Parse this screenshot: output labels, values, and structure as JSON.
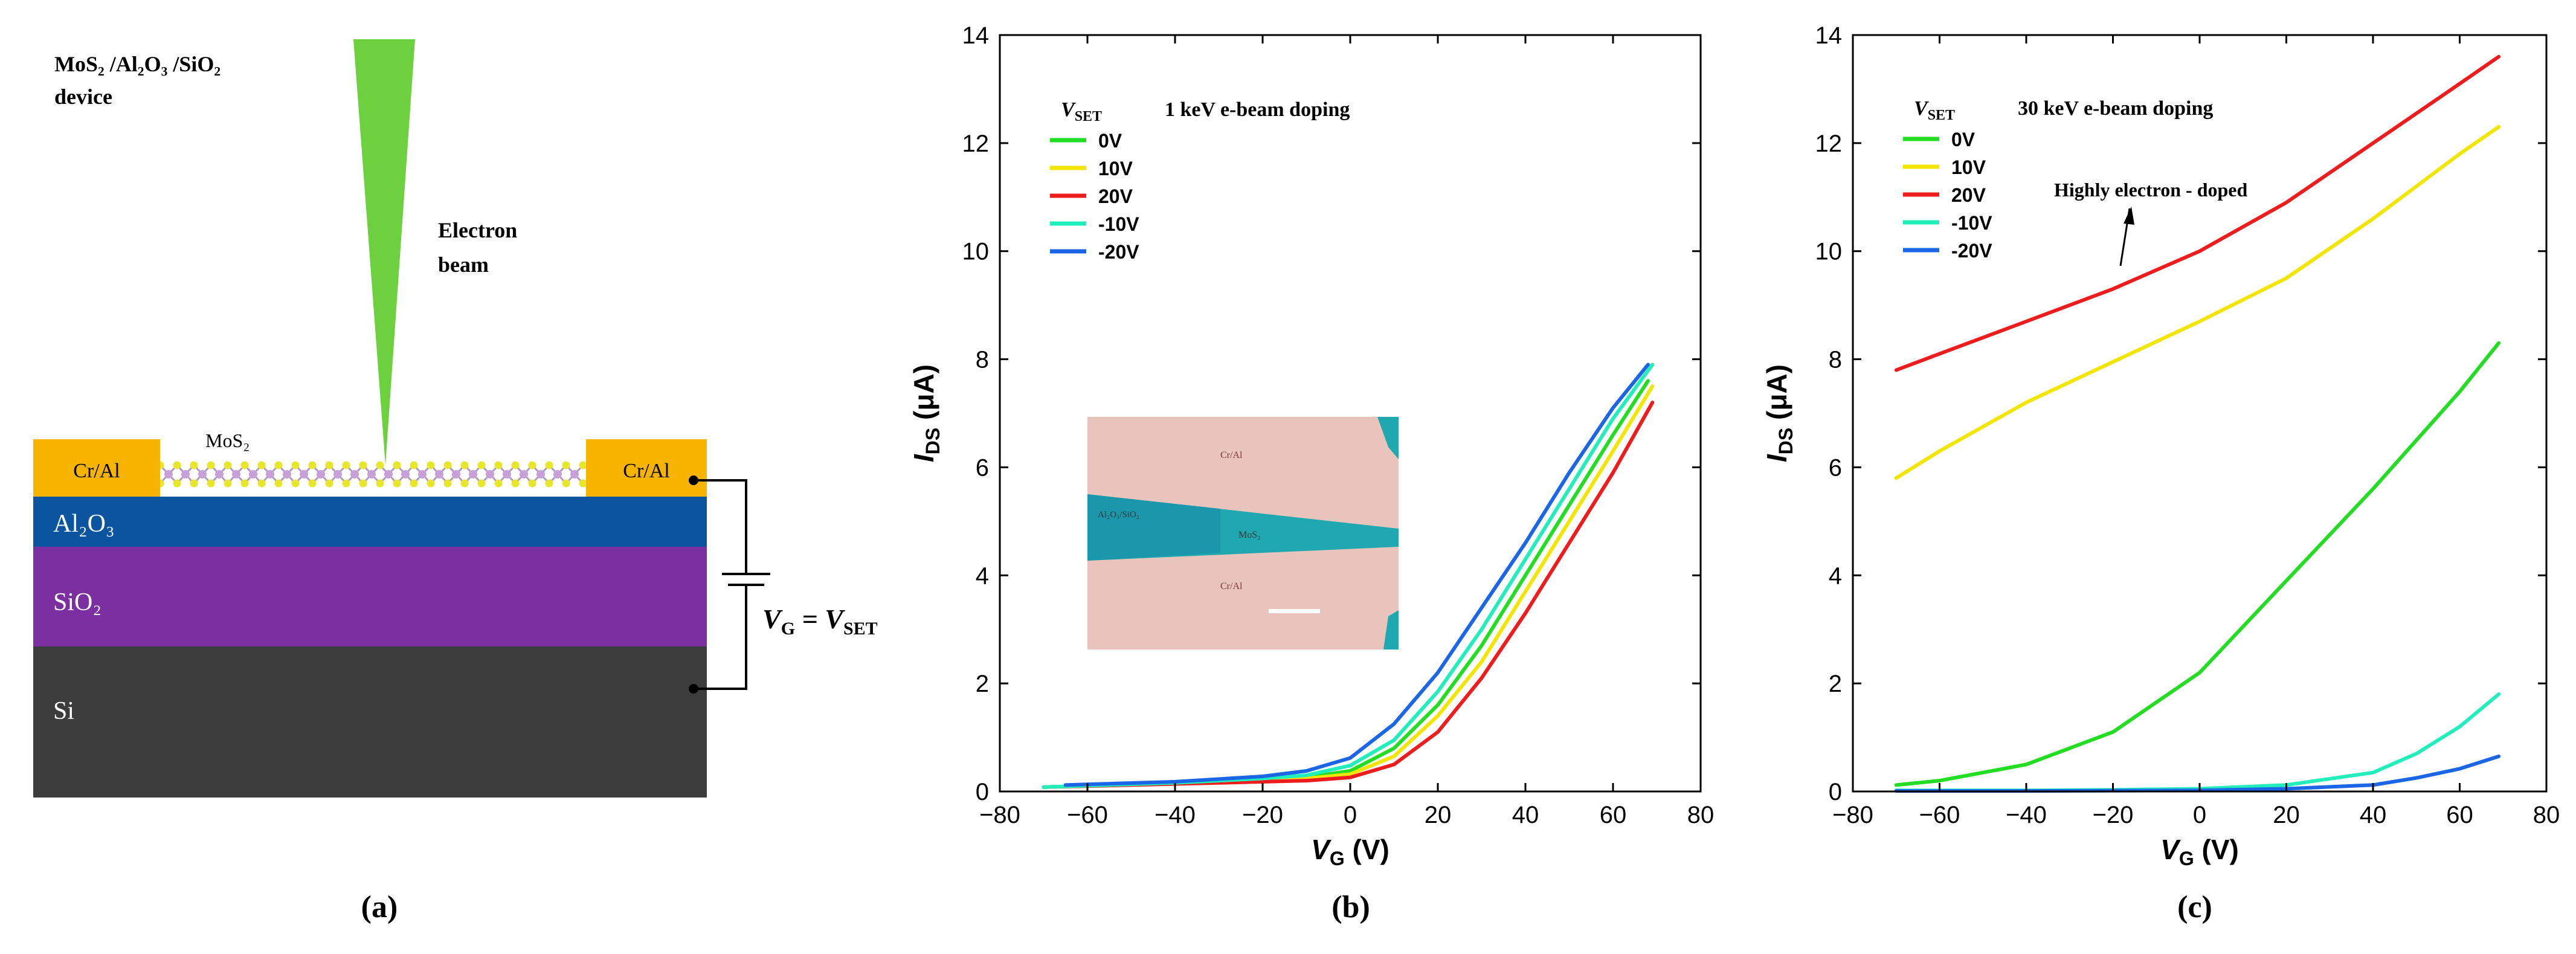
{
  "panel_a": {
    "device_label_line1": "MoS₂ /Al₂O₃ /SiO₂",
    "device_label_line2": "device",
    "beam_label_line1": "Electron",
    "beam_label_line2": "beam",
    "mos2_label": "MoS₂",
    "contact_left": "Cr/Al",
    "contact_right": "Cr/Al",
    "layer_al2o3": "Al₂O₃",
    "layer_sio2": "SiO₂",
    "layer_si": "Si",
    "voltage_label": "V",
    "voltage_sub_g": "G",
    "voltage_eq": " = V",
    "voltage_sub_set": "SET",
    "caption": "(a)",
    "colors": {
      "beam": "#6dd13f",
      "contact": "#f6b400",
      "al2o3": "#0b55a0",
      "sio2": "#7b2fa0",
      "si": "#3c3c3c"
    }
  },
  "inset": {
    "label_top": "Cr/Al",
    "label_mid_left": "Al₂O₃/SiO₂",
    "label_mid": "MoS₂",
    "label_bottom": "Cr/Al"
  },
  "chart_data": [
    {
      "type": "line",
      "panel": "(b)",
      "legend_title": "V",
      "legend_title_sub": "SET",
      "legend_note": "1 keV e-beam doping",
      "xlabel_main": "V",
      "xlabel_sub": "G",
      "xlabel_unit": " (V)",
      "ylabel_main": "I",
      "ylabel_sub": "DS",
      "ylabel_unit": " (μA)",
      "xlim": [
        -80,
        80
      ],
      "ylim": [
        0,
        14
      ],
      "xticks": [
        -80,
        -60,
        -40,
        -20,
        0,
        20,
        40,
        60,
        80
      ],
      "yticks": [
        0,
        2,
        4,
        6,
        8,
        10,
        12,
        14
      ],
      "series": [
        {
          "name": "0V",
          "color": "#22dd22",
          "x": [
            -70,
            -40,
            -20,
            -10,
            0,
            10,
            20,
            30,
            40,
            50,
            60,
            68
          ],
          "y": [
            0.08,
            0.15,
            0.22,
            0.26,
            0.38,
            0.8,
            1.6,
            2.7,
            4.0,
            5.3,
            6.6,
            7.6
          ]
        },
        {
          "name": "10V",
          "color": "#f2e600",
          "x": [
            -70,
            -40,
            -20,
            -10,
            0,
            10,
            20,
            30,
            40,
            50,
            60,
            69
          ],
          "y": [
            0.08,
            0.15,
            0.2,
            0.24,
            0.32,
            0.65,
            1.4,
            2.4,
            3.7,
            5.0,
            6.3,
            7.5
          ]
        },
        {
          "name": "20V",
          "color": "#ee1c1c",
          "x": [
            -70,
            -40,
            -20,
            -10,
            0,
            10,
            20,
            30,
            40,
            50,
            60,
            69
          ],
          "y": [
            0.08,
            0.14,
            0.18,
            0.2,
            0.26,
            0.5,
            1.1,
            2.1,
            3.3,
            4.6,
            5.9,
            7.2
          ]
        },
        {
          "name": "-10V",
          "color": "#22eebb",
          "x": [
            -70,
            -40,
            -20,
            -10,
            0,
            10,
            20,
            30,
            40,
            50,
            60,
            69
          ],
          "y": [
            0.08,
            0.16,
            0.24,
            0.3,
            0.48,
            0.95,
            1.85,
            3.0,
            4.3,
            5.6,
            6.9,
            7.9
          ]
        },
        {
          "name": "-20V",
          "color": "#1a66e6",
          "x": [
            -65,
            -40,
            -20,
            -10,
            0,
            10,
            20,
            30,
            40,
            50,
            60,
            68
          ],
          "y": [
            0.12,
            0.18,
            0.28,
            0.38,
            0.62,
            1.25,
            2.2,
            3.4,
            4.6,
            5.9,
            7.1,
            7.9
          ]
        }
      ]
    },
    {
      "type": "line",
      "panel": "(c)",
      "legend_title": "V",
      "legend_title_sub": "SET",
      "legend_note": "30 keV e-beam doping",
      "annotation": "Highly electron - doped",
      "xlabel_main": "V",
      "xlabel_sub": "G",
      "xlabel_unit": " (V)",
      "ylabel_main": "I",
      "ylabel_sub": "DS",
      "ylabel_unit": " (μA)",
      "xlim": [
        -80,
        80
      ],
      "ylim": [
        0,
        14
      ],
      "xticks": [
        -80,
        -60,
        -40,
        -20,
        0,
        20,
        40,
        60,
        80
      ],
      "yticks": [
        0,
        2,
        4,
        6,
        8,
        10,
        12,
        14
      ],
      "series": [
        {
          "name": "0V",
          "color": "#22dd22",
          "x": [
            -70,
            -60,
            -40,
            -20,
            0,
            20,
            40,
            60,
            69
          ],
          "y": [
            0.12,
            0.2,
            0.5,
            1.1,
            2.2,
            3.9,
            5.6,
            7.4,
            8.3
          ]
        },
        {
          "name": "10V",
          "color": "#f2e600",
          "x": [
            -70,
            -60,
            -40,
            -20,
            0,
            20,
            40,
            60,
            69
          ],
          "y": [
            5.8,
            6.3,
            7.2,
            7.95,
            8.7,
            9.5,
            10.6,
            11.8,
            12.3
          ]
        },
        {
          "name": "20V",
          "color": "#ee1c1c",
          "x": [
            -70,
            -60,
            -40,
            -20,
            0,
            20,
            40,
            60,
            69
          ],
          "y": [
            7.8,
            8.1,
            8.7,
            9.3,
            10.0,
            10.9,
            12.0,
            13.1,
            13.6
          ]
        },
        {
          "name": "-10V",
          "color": "#22eebb",
          "x": [
            -70,
            -40,
            -20,
            0,
            20,
            40,
            50,
            60,
            69
          ],
          "y": [
            0.02,
            0.02,
            0.03,
            0.05,
            0.12,
            0.35,
            0.7,
            1.2,
            1.8
          ]
        },
        {
          "name": "-20V",
          "color": "#1a66e6",
          "x": [
            -70,
            -40,
            0,
            20,
            40,
            50,
            60,
            69
          ],
          "y": [
            0.01,
            0.01,
            0.02,
            0.05,
            0.12,
            0.25,
            0.42,
            0.65
          ]
        }
      ]
    }
  ]
}
